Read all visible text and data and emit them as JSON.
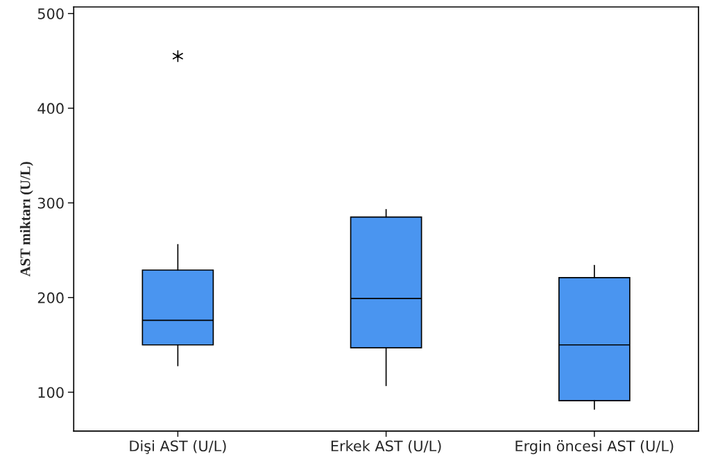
{
  "chart_data": {
    "type": "box",
    "ylabel": "AST miktarı (U/L)",
    "categories": [
      "Dişi AST (U/L)",
      "Erkek AST (U/L)",
      "Ergin öncesi AST (U/L)"
    ],
    "color": "#4a95f0",
    "boxes": [
      {
        "low": 128,
        "q1": 150,
        "median": 176,
        "q3": 229,
        "high": 256,
        "outliers": [
          455
        ]
      },
      {
        "low": 107,
        "q1": 147,
        "median": 199,
        "q3": 285,
        "high": 293
      },
      {
        "low": 82,
        "q1": 91,
        "median": 150,
        "q3": 221,
        "high": 234
      }
    ],
    "ylim": [
      59,
      507
    ],
    "yticks": [
      100,
      200,
      300,
      400,
      500
    ],
    "grid": false
  }
}
